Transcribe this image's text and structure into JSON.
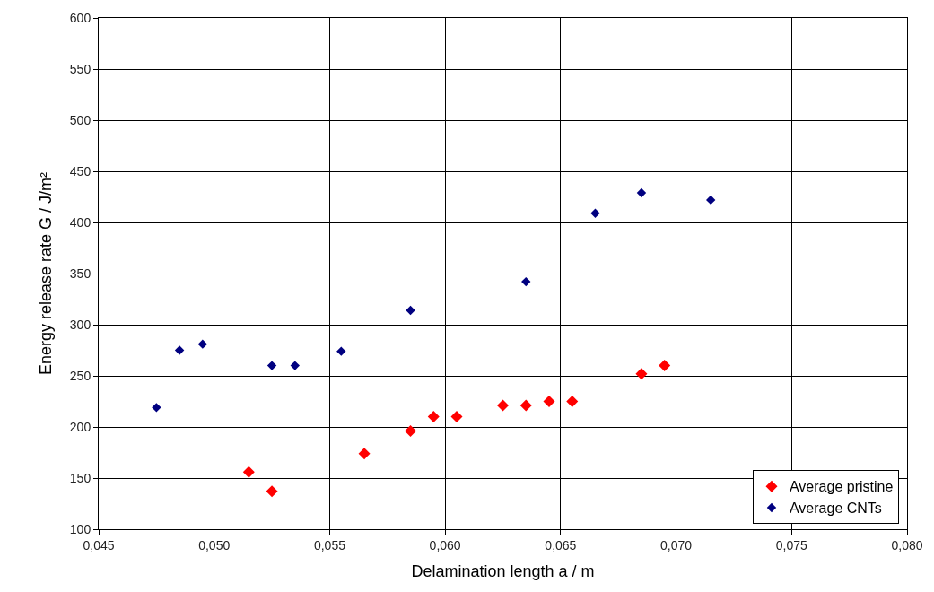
{
  "chart_data": {
    "type": "scatter",
    "xlabel": "Delamination length a / m",
    "ylabel": "Energy release rate G / J/m²",
    "xlim": [
      0.045,
      0.08
    ],
    "ylim": [
      100,
      600
    ],
    "xticks": [
      {
        "value": 0.045,
        "label": "0,045"
      },
      {
        "value": 0.05,
        "label": "0,050"
      },
      {
        "value": 0.055,
        "label": "0,055"
      },
      {
        "value": 0.06,
        "label": "0,060"
      },
      {
        "value": 0.065,
        "label": "0,065"
      },
      {
        "value": 0.07,
        "label": "0,070"
      },
      {
        "value": 0.075,
        "label": "0,075"
      },
      {
        "value": 0.08,
        "label": "0,080"
      }
    ],
    "yticks": [
      100,
      150,
      200,
      250,
      300,
      350,
      400,
      450,
      500,
      550,
      600
    ],
    "grid": true,
    "legend": "bottom right",
    "marker": "diamond",
    "series": [
      {
        "name": "Average pristine",
        "color": "#ff0000",
        "x": [
          0.0515,
          0.0525,
          0.0565,
          0.0585,
          0.0595,
          0.0605,
          0.0625,
          0.0635,
          0.0645,
          0.0655,
          0.0685,
          0.0695
        ],
        "values": [
          156,
          137,
          174,
          196,
          210,
          210,
          221,
          221,
          225,
          225,
          252,
          260
        ]
      },
      {
        "name": "Average CNTs",
        "color": "#000080",
        "x": [
          0.0475,
          0.0485,
          0.0495,
          0.0525,
          0.0535,
          0.0555,
          0.0585,
          0.0635,
          0.0665,
          0.0685,
          0.0715
        ],
        "values": [
          219,
          275,
          281,
          260,
          260,
          274,
          314,
          342,
          409,
          429,
          422
        ]
      }
    ]
  }
}
